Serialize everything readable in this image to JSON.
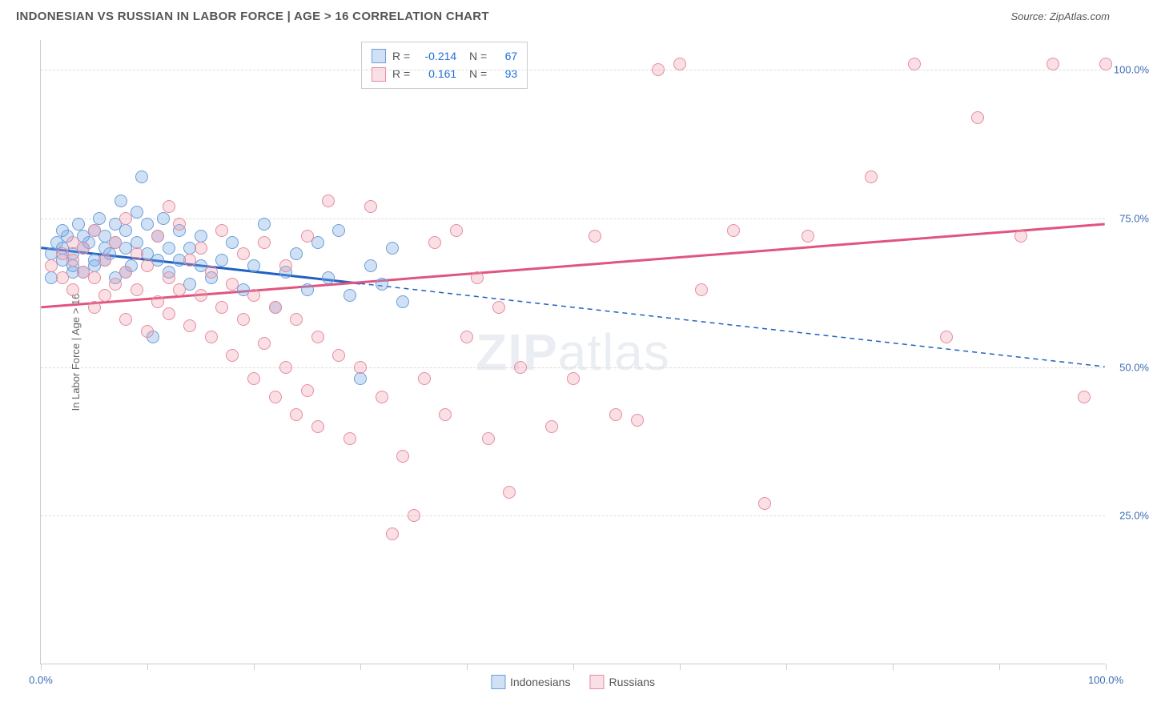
{
  "header": {
    "title": "INDONESIAN VS RUSSIAN IN LABOR FORCE | AGE > 16 CORRELATION CHART",
    "source": "Source: ZipAtlas.com"
  },
  "chart": {
    "type": "scatter",
    "y_axis_label": "In Labor Force | Age > 16",
    "xlim": [
      0,
      100
    ],
    "ylim": [
      0,
      105
    ],
    "x_ticks": [
      0,
      10,
      20,
      30,
      40,
      50,
      60,
      70,
      80,
      90,
      100
    ],
    "x_tick_labels": {
      "0": "0.0%",
      "100": "100.0%"
    },
    "y_gridlines": [
      25,
      50,
      75,
      100
    ],
    "y_tick_labels": {
      "25": "25.0%",
      "50": "50.0%",
      "75": "75.0%",
      "100": "100.0%"
    },
    "background_color": "#ffffff",
    "grid_color": "#dddddd",
    "axis_color": "#cccccc",
    "tick_label_color": "#3b6db5",
    "marker_size": 16,
    "series": [
      {
        "name": "Indonesians",
        "fill_color": "rgba(120, 170, 230, 0.35)",
        "stroke_color": "#6a9fd8",
        "R": "-0.214",
        "N": "67",
        "points": [
          [
            1,
            69
          ],
          [
            1.5,
            71
          ],
          [
            2,
            68
          ],
          [
            2,
            70
          ],
          [
            2.5,
            72
          ],
          [
            3,
            67
          ],
          [
            3,
            69
          ],
          [
            3.5,
            74
          ],
          [
            4,
            70
          ],
          [
            4,
            66
          ],
          [
            4.5,
            71
          ],
          [
            5,
            73
          ],
          [
            5,
            68
          ],
          [
            5.5,
            75
          ],
          [
            6,
            70
          ],
          [
            6,
            72
          ],
          [
            6.5,
            69
          ],
          [
            7,
            74
          ],
          [
            7,
            65
          ],
          [
            7.5,
            78
          ],
          [
            8,
            73
          ],
          [
            8,
            70
          ],
          [
            8.5,
            67
          ],
          [
            9,
            76
          ],
          [
            9,
            71
          ],
          [
            9.5,
            82
          ],
          [
            10,
            69
          ],
          [
            10,
            74
          ],
          [
            10.5,
            55
          ],
          [
            11,
            72
          ],
          [
            11,
            68
          ],
          [
            11.5,
            75
          ],
          [
            12,
            70
          ],
          [
            12,
            66
          ],
          [
            13,
            73
          ],
          [
            13,
            68
          ],
          [
            14,
            70
          ],
          [
            14,
            64
          ],
          [
            15,
            67
          ],
          [
            15,
            72
          ],
          [
            16,
            65
          ],
          [
            17,
            68
          ],
          [
            18,
            71
          ],
          [
            19,
            63
          ],
          [
            20,
            67
          ],
          [
            21,
            74
          ],
          [
            22,
            60
          ],
          [
            23,
            66
          ],
          [
            24,
            69
          ],
          [
            25,
            63
          ],
          [
            26,
            71
          ],
          [
            27,
            65
          ],
          [
            28,
            73
          ],
          [
            29,
            62
          ],
          [
            30,
            48
          ],
          [
            31,
            67
          ],
          [
            32,
            64
          ],
          [
            33,
            70
          ],
          [
            34,
            61
          ],
          [
            1,
            65
          ],
          [
            2,
            73
          ],
          [
            3,
            66
          ],
          [
            4,
            72
          ],
          [
            5,
            67
          ],
          [
            6,
            68
          ],
          [
            7,
            71
          ],
          [
            8,
            66
          ]
        ],
        "trend": {
          "solid": {
            "x1": 0,
            "y1": 70,
            "x2": 30,
            "y2": 64
          },
          "dashed": {
            "x1": 30,
            "y1": 64,
            "x2": 100,
            "y2": 50
          },
          "solid_color": "#2060c0",
          "solid_width": 3
        }
      },
      {
        "name": "Russians",
        "fill_color": "rgba(240, 150, 170, 0.3)",
        "stroke_color": "#e58ca0",
        "R": "0.161",
        "N": "93",
        "points": [
          [
            1,
            67
          ],
          [
            2,
            65
          ],
          [
            2,
            69
          ],
          [
            3,
            63
          ],
          [
            3,
            68
          ],
          [
            4,
            66
          ],
          [
            4,
            70
          ],
          [
            5,
            60
          ],
          [
            5,
            65
          ],
          [
            6,
            62
          ],
          [
            6,
            68
          ],
          [
            7,
            64
          ],
          [
            7,
            71
          ],
          [
            8,
            58
          ],
          [
            8,
            66
          ],
          [
            9,
            63
          ],
          [
            9,
            69
          ],
          [
            10,
            56
          ],
          [
            10,
            67
          ],
          [
            11,
            61
          ],
          [
            11,
            72
          ],
          [
            12,
            59
          ],
          [
            12,
            65
          ],
          [
            13,
            63
          ],
          [
            13,
            74
          ],
          [
            14,
            57
          ],
          [
            14,
            68
          ],
          [
            15,
            62
          ],
          [
            15,
            70
          ],
          [
            16,
            55
          ],
          [
            16,
            66
          ],
          [
            17,
            60
          ],
          [
            17,
            73
          ],
          [
            18,
            52
          ],
          [
            18,
            64
          ],
          [
            19,
            58
          ],
          [
            19,
            69
          ],
          [
            20,
            48
          ],
          [
            20,
            62
          ],
          [
            21,
            54
          ],
          [
            21,
            71
          ],
          [
            22,
            45
          ],
          [
            22,
            60
          ],
          [
            23,
            50
          ],
          [
            23,
            67
          ],
          [
            24,
            42
          ],
          [
            24,
            58
          ],
          [
            25,
            46
          ],
          [
            25,
            72
          ],
          [
            26,
            40
          ],
          [
            26,
            55
          ],
          [
            27,
            78
          ],
          [
            28,
            52
          ],
          [
            29,
            38
          ],
          [
            30,
            50
          ],
          [
            31,
            77
          ],
          [
            32,
            45
          ],
          [
            33,
            22
          ],
          [
            34,
            35
          ],
          [
            35,
            25
          ],
          [
            36,
            48
          ],
          [
            37,
            71
          ],
          [
            38,
            42
          ],
          [
            39,
            73
          ],
          [
            40,
            55
          ],
          [
            41,
            65
          ],
          [
            42,
            38
          ],
          [
            43,
            60
          ],
          [
            44,
            29
          ],
          [
            45,
            50
          ],
          [
            48,
            40
          ],
          [
            50,
            48
          ],
          [
            52,
            72
          ],
          [
            54,
            42
          ],
          [
            56,
            41
          ],
          [
            58,
            100
          ],
          [
            60,
            101
          ],
          [
            62,
            63
          ],
          [
            65,
            73
          ],
          [
            68,
            27
          ],
          [
            72,
            72
          ],
          [
            78,
            82
          ],
          [
            82,
            101
          ],
          [
            85,
            55
          ],
          [
            88,
            92
          ],
          [
            92,
            72
          ],
          [
            95,
            101
          ],
          [
            98,
            45
          ],
          [
            100,
            101
          ],
          [
            3,
            71
          ],
          [
            5,
            73
          ],
          [
            8,
            75
          ],
          [
            12,
            77
          ]
        ],
        "trend": {
          "solid": {
            "x1": 0,
            "y1": 60,
            "x2": 100,
            "y2": 74
          },
          "solid_color": "#e05580",
          "solid_width": 3
        }
      }
    ],
    "stats_box": {
      "r_label": "R =",
      "n_label": "N ="
    },
    "bottom_legend": {
      "items": [
        "Indonesians",
        "Russians"
      ]
    },
    "watermark": {
      "zip": "ZIP",
      "atlas": "atlas"
    }
  }
}
